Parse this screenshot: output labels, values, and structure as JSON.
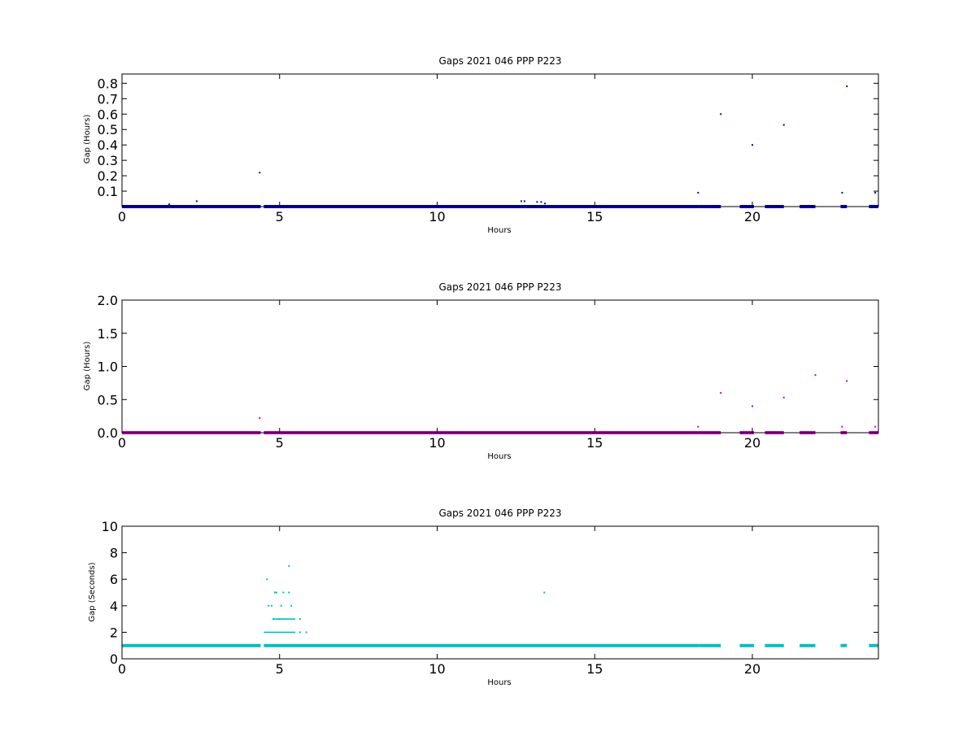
{
  "colors": {
    "background": "#ffffff",
    "axes": "#000000",
    "panel_1_series": "#0000cc",
    "panel_2_series": "#bf00bf",
    "panel_3_series": "#00bfbf"
  },
  "chart_data": [
    {
      "type": "scatter",
      "title": "Gaps 2021 046 PPP  P223",
      "xlabel": "Hours",
      "ylabel": "Gap (Hours)",
      "xlim": [
        0,
        24
      ],
      "ylim": [
        0,
        0.86
      ],
      "xticks": [
        0,
        5,
        10,
        15,
        20
      ],
      "xtick_labels": [
        "0",
        "5",
        "10",
        "15",
        "20"
      ],
      "yticks": [
        0.1,
        0.2,
        0.3,
        0.4,
        0.5,
        0.6,
        0.7,
        0.8
      ],
      "ytick_labels": [
        "0.1",
        "0.2",
        "0.3",
        "0.4",
        "0.5",
        "0.6",
        "0.7",
        "0.8"
      ],
      "grid": false,
      "baseline": {
        "y": 0.0003,
        "segments": [
          [
            0,
            4.4
          ],
          [
            4.5,
            18.3
          ],
          [
            18.3,
            19.0
          ],
          [
            19.6,
            20.05
          ],
          [
            20.4,
            21.0
          ],
          [
            21.5,
            22.0
          ],
          [
            22.8,
            23.0
          ],
          [
            23.7,
            24
          ]
        ]
      },
      "points": {
        "x": [
          1.5,
          2.37,
          4.37,
          12.67,
          12.77,
          13.17,
          13.3,
          13.42,
          18.28,
          19.0,
          20.0,
          21.0,
          22.85,
          23.0,
          23.9
        ],
        "y": [
          0.015,
          0.035,
          0.22,
          0.035,
          0.035,
          0.03,
          0.03,
          0.02,
          0.09,
          0.6,
          0.4,
          0.53,
          0.09,
          0.78,
          0.09
        ]
      }
    },
    {
      "type": "scatter",
      "title": "Gaps 2021 046 PPP  P223",
      "xlabel": "Hours",
      "ylabel": "Gap (Hours)",
      "xlim": [
        0,
        24
      ],
      "ylim": [
        0,
        2.0
      ],
      "xticks": [
        0,
        5,
        10,
        15,
        20
      ],
      "xtick_labels": [
        "0",
        "5",
        "10",
        "15",
        "20"
      ],
      "yticks": [
        0.0,
        0.5,
        1.0,
        1.5,
        2.0
      ],
      "ytick_labels": [
        "0.0",
        "0.5",
        "1.0",
        "1.5",
        "2.0"
      ],
      "grid": false,
      "baseline": {
        "y": 0.0003,
        "segments": [
          [
            0,
            4.4
          ],
          [
            4.5,
            18.3
          ],
          [
            18.3,
            19.0
          ],
          [
            19.6,
            20.05
          ],
          [
            20.4,
            21.0
          ],
          [
            21.5,
            22.0
          ],
          [
            22.8,
            23.0
          ],
          [
            23.7,
            24
          ]
        ]
      },
      "points": {
        "x": [
          4.37,
          18.28,
          19.0,
          20.0,
          21.0,
          22.0,
          22.85,
          23.0,
          23.9
        ],
        "y": [
          0.22,
          0.09,
          0.6,
          0.4,
          0.53,
          0.87,
          0.09,
          0.78,
          0.09
        ]
      }
    },
    {
      "type": "scatter",
      "title": "Gaps 2021 046 PPP  P223",
      "xlabel": "Hours",
      "ylabel": "Gap (Seconds)",
      "xlim": [
        0,
        24
      ],
      "ylim": [
        0,
        10
      ],
      "xticks": [
        0,
        5,
        10,
        15,
        20
      ],
      "xtick_labels": [
        "0",
        "5",
        "10",
        "15",
        "20"
      ],
      "yticks": [
        0,
        2,
        4,
        6,
        8,
        10
      ],
      "ytick_labels": [
        "0",
        "2",
        "4",
        "6",
        "8",
        "10"
      ],
      "grid": false,
      "baseline": {
        "y": 1,
        "segments": [
          [
            0,
            4.4
          ],
          [
            4.5,
            18.3
          ],
          [
            18.3,
            19.0
          ],
          [
            19.6,
            20.05
          ],
          [
            20.4,
            21.0
          ],
          [
            21.5,
            22.0
          ],
          [
            22.8,
            23.0
          ],
          [
            23.7,
            24
          ]
        ]
      },
      "segments_extra": [
        {
          "y": 2,
          "from": 4.5,
          "to": 5.5
        },
        {
          "y": 3,
          "from": 4.8,
          "to": 5.5
        }
      ],
      "points": {
        "x": [
          4.6,
          4.65,
          4.75,
          4.8,
          4.85,
          4.9,
          5.0,
          5.05,
          5.12,
          5.3,
          5.3,
          5.37,
          5.65,
          5.65,
          5.85,
          13.4
        ],
        "y": [
          6,
          4,
          4,
          3,
          5,
          5,
          3,
          4,
          5,
          7,
          5,
          4,
          3,
          2,
          2,
          5
        ]
      }
    }
  ]
}
